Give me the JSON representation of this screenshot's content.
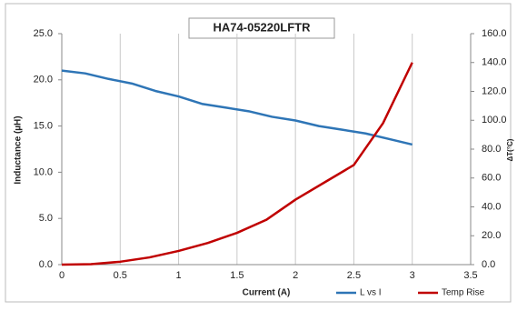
{
  "chart_data": {
    "type": "line",
    "title": "HA74-05220LFTR",
    "x_label": "Current (A)",
    "y_label": "Inductance (µH)",
    "y2_label": "ΔT(°C)",
    "xlim": [
      0,
      3.5
    ],
    "xticks": [
      0,
      0.5,
      1,
      1.5,
      2,
      2.5,
      3,
      3.5
    ],
    "ylim": [
      0,
      25
    ],
    "yticks": [
      {
        "value": 0,
        "label": "0.0"
      },
      {
        "value": 5,
        "label": "5.0"
      },
      {
        "value": 10,
        "label": "10.0"
      },
      {
        "value": 15,
        "label": "15.0"
      },
      {
        "value": 20,
        "label": "20.0"
      },
      {
        "value": 25,
        "label": "25.0"
      }
    ],
    "y2lim": [
      0,
      160
    ],
    "y2ticks": [
      {
        "value": 0,
        "label": "0.0"
      },
      {
        "value": 20,
        "label": "20.0"
      },
      {
        "value": 40,
        "label": "40.0"
      },
      {
        "value": 60,
        "label": "60.0"
      },
      {
        "value": 80,
        "label": "80.0"
      },
      {
        "value": 100,
        "label": "100.0"
      },
      {
        "value": 120,
        "label": "120.0"
      },
      {
        "value": 140,
        "label": "140.0"
      },
      {
        "value": 160,
        "label": "160.0"
      }
    ],
    "grid": "x",
    "legend": "bottom-right",
    "series": [
      {
        "name": "L vs I",
        "color": "#2e75b6",
        "x": [
          0,
          0.2,
          0.4,
          0.6,
          0.8,
          1.0,
          1.2,
          1.4,
          1.6,
          1.8,
          2.0,
          2.2,
          2.4,
          2.6,
          2.8,
          3.0
        ],
        "values": [
          21.0,
          20.7,
          20.1,
          19.6,
          18.8,
          18.2,
          17.4,
          17.0,
          16.6,
          16.0,
          15.6,
          15.0,
          14.6,
          14.2,
          13.6,
          13.0
        ]
      },
      {
        "name": "Temp Rise",
        "color": "#c00000",
        "axis": "y2",
        "x": [
          0,
          0.25,
          0.5,
          0.75,
          1.0,
          1.25,
          1.5,
          1.75,
          2.0,
          2.25,
          2.5,
          2.75,
          3.0
        ],
        "values": [
          0,
          0.3,
          2,
          5,
          9.5,
          15,
          22,
          31,
          45,
          57,
          69,
          98,
          140
        ]
      }
    ]
  }
}
